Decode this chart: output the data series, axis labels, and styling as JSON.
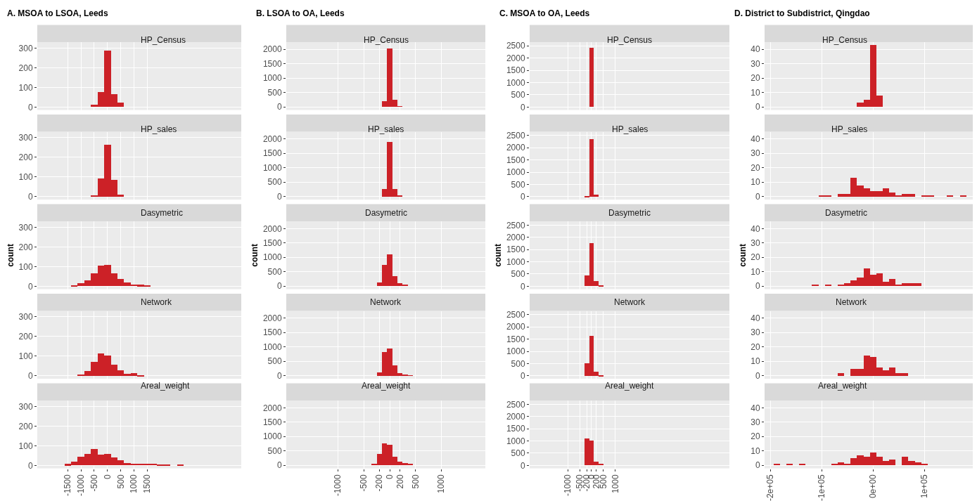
{
  "chart_data": [
    {
      "type": "histogram",
      "title": "A. MSOA to LSOA, Leeds",
      "subtitle": "HP_Census",
      "color": "#cc2127",
      "grid": true,
      "tick_labels": "y",
      "bins": [
        -1625,
        -1375,
        -1125,
        -875,
        -625,
        -375,
        -125,
        125,
        375,
        625,
        875,
        1125,
        1375,
        1625,
        1875,
        2125,
        2375,
        2625,
        2875
      ],
      "xlim": [
        -2650,
        5050
      ],
      "xticks": [
        -1500,
        -1000,
        -500,
        0,
        500,
        1000,
        1500
      ],
      "ylim": [
        -15,
        330
      ],
      "yticks": [
        0,
        100,
        200,
        300
      ],
      "values": [
        0,
        0,
        0,
        0,
        12,
        75,
        288,
        65,
        22,
        0,
        0,
        0,
        0,
        0,
        0,
        0,
        0,
        0
      ]
    },
    {
      "type": "histogram",
      "subtitle": "HP_sales",
      "color": "#cc2127",
      "grid": true,
      "tick_labels": "y",
      "bins": [
        -1625,
        -1375,
        -1125,
        -875,
        -625,
        -375,
        -125,
        125,
        375,
        625,
        875,
        1125,
        1375,
        1625,
        1875,
        2125,
        2375,
        2625,
        2875
      ],
      "xlim": [
        -2650,
        5050
      ],
      "xticks": [
        -1500,
        -1000,
        -500,
        0,
        500,
        1000,
        1500
      ],
      "ylim": [
        -15,
        330
      ],
      "yticks": [
        0,
        100,
        200,
        300
      ],
      "values": [
        0,
        0,
        0,
        0,
        8,
        95,
        265,
        88,
        12,
        0,
        0,
        0,
        0,
        0,
        0,
        0,
        0,
        0
      ]
    },
    {
      "type": "histogram",
      "subtitle": "Dasymetric",
      "ylabel": "count",
      "color": "#cc2127",
      "grid": true,
      "tick_labels": "y",
      "bins": [
        -1625,
        -1375,
        -1125,
        -875,
        -625,
        -375,
        -125,
        125,
        375,
        625,
        875,
        1125,
        1375,
        1625,
        1875,
        2125,
        2375,
        2625,
        2875
      ],
      "xlim": [
        -2650,
        5050
      ],
      "xticks": [
        -1500,
        -1000,
        -500,
        0,
        500,
        1000,
        1500
      ],
      "ylim": [
        -15,
        330
      ],
      "yticks": [
        0,
        100,
        200,
        300
      ],
      "values": [
        0,
        5,
        15,
        28,
        65,
        103,
        110,
        65,
        38,
        20,
        8,
        7,
        4,
        0,
        0,
        0,
        0,
        0
      ]
    },
    {
      "type": "histogram",
      "subtitle": "Network",
      "color": "#cc2127",
      "grid": true,
      "tick_labels": "y",
      "bins": [
        -1625,
        -1375,
        -1125,
        -875,
        -625,
        -375,
        -125,
        125,
        375,
        625,
        875,
        1125,
        1375,
        1625,
        1875,
        2125,
        2375,
        2625,
        2875
      ],
      "xlim": [
        -2650,
        5050
      ],
      "xticks": [
        -1500,
        -1000,
        -500,
        0,
        500,
        1000,
        1500
      ],
      "ylim": [
        -15,
        330
      ],
      "yticks": [
        0,
        100,
        200,
        300
      ],
      "values": [
        0,
        0,
        8,
        25,
        72,
        115,
        105,
        60,
        28,
        12,
        15,
        5,
        0,
        0,
        0,
        0,
        0,
        0
      ]
    },
    {
      "type": "histogram",
      "subtitle": "Areal_weight",
      "color": "#cc2127",
      "grid": true,
      "bins": [
        -1625,
        -1375,
        -1125,
        -875,
        -625,
        -375,
        -125,
        125,
        375,
        625,
        875,
        1125,
        1375,
        1625,
        1875,
        2125,
        2375,
        2625,
        2875
      ],
      "xlim": [
        -2650,
        5050
      ],
      "xticks": [
        -1500,
        -1000,
        -500,
        0,
        500,
        1000,
        1500
      ],
      "ylim": [
        -15,
        330
      ],
      "yticks": [
        0,
        100,
        200,
        300
      ],
      "values": [
        7,
        20,
        43,
        57,
        82,
        55,
        60,
        42,
        25,
        13,
        8,
        8,
        8,
        8,
        5,
        4,
        0,
        6
      ]
    },
    {
      "type": "histogram",
      "title": "B. LSOA to OA, Leeds",
      "subtitle": "HP_Census",
      "color": "#cc2127",
      "grid": true,
      "tick_labels": "y",
      "bins": [
        -350,
        -250,
        -150,
        -50,
        50,
        150,
        250,
        350,
        450
      ],
      "xlim": [
        -2000,
        1850
      ],
      "xticks": [
        -1000,
        -500,
        -200,
        0,
        200,
        500,
        1000
      ],
      "ylim": [
        -110,
        2250
      ],
      "yticks": [
        0,
        500,
        1000,
        1500,
        2000
      ],
      "values": [
        0,
        0,
        200,
        2020,
        250,
        10,
        0,
        0
      ]
    },
    {
      "type": "histogram",
      "subtitle": "HP_sales",
      "color": "#cc2127",
      "grid": true,
      "tick_labels": "y",
      "bins": [
        -350,
        -250,
        -150,
        -50,
        50,
        150,
        250,
        350,
        450
      ],
      "xlim": [
        -2000,
        1850
      ],
      "xticks": [
        -1000,
        -500,
        -200,
        0,
        200,
        500,
        1000
      ],
      "ylim": [
        -110,
        2250
      ],
      "yticks": [
        0,
        500,
        1000,
        1500,
        2000
      ],
      "values": [
        0,
        0,
        270,
        1900,
        270,
        30,
        0,
        0
      ]
    },
    {
      "type": "histogram",
      "subtitle": "Dasymetric",
      "ylabel": "count",
      "color": "#cc2127",
      "grid": true,
      "tick_labels": "y",
      "bins": [
        -350,
        -250,
        -150,
        -50,
        50,
        150,
        250,
        350,
        450
      ],
      "xlim": [
        -2000,
        1850
      ],
      "xticks": [
        -1000,
        -500,
        -200,
        0,
        200,
        500,
        1000
      ],
      "ylim": [
        -110,
        2250
      ],
      "yticks": [
        0,
        500,
        1000,
        1500,
        2000
      ],
      "values": [
        0,
        130,
        730,
        1110,
        340,
        100,
        30,
        0
      ]
    },
    {
      "type": "histogram",
      "subtitle": "Network",
      "color": "#cc2127",
      "grid": true,
      "tick_labels": "y",
      "bins": [
        -350,
        -250,
        -150,
        -50,
        50,
        150,
        250,
        350,
        450
      ],
      "xlim": [
        -2000,
        1850
      ],
      "xticks": [
        -1000,
        -500,
        -200,
        0,
        200,
        500,
        1000
      ],
      "ylim": [
        -110,
        2250
      ],
      "yticks": [
        0,
        500,
        1000,
        1500,
        2000
      ],
      "values": [
        0,
        120,
        820,
        950,
        370,
        90,
        40,
        10
      ]
    },
    {
      "type": "histogram",
      "subtitle": "Areal_weight",
      "color": "#cc2127",
      "grid": true,
      "bins": [
        -350,
        -250,
        -150,
        -50,
        50,
        150,
        250,
        350,
        450
      ],
      "xlim": [
        -2000,
        1850
      ],
      "xticks": [
        -1000,
        -500,
        -200,
        0,
        200,
        500,
        1000
      ],
      "ylim": [
        -110,
        2250
      ],
      "yticks": [
        0,
        500,
        1000,
        1500,
        2000
      ],
      "values": [
        50,
        400,
        750,
        700,
        290,
        130,
        70,
        50
      ]
    },
    {
      "type": "histogram",
      "title": "C. MSOA to OA, Leeds",
      "subtitle": "HP_Census",
      "color": "#cc2127",
      "grid": true,
      "tick_labels": "y",
      "bins": [
        -300,
        -100,
        100,
        300,
        500
      ],
      "xlim": [
        -2600,
        5800
      ],
      "xticks": [
        -1000,
        -500,
        -200,
        0,
        200,
        500,
        1000
      ],
      "ylim": [
        -120,
        2650
      ],
      "yticks": [
        0,
        500,
        1000,
        1500,
        2000,
        2500
      ],
      "values": [
        0,
        2420,
        0,
        0
      ]
    },
    {
      "type": "histogram",
      "subtitle": "HP_sales",
      "color": "#cc2127",
      "grid": true,
      "tick_labels": "y",
      "bins": [
        -300,
        -100,
        100,
        300,
        500
      ],
      "xlim": [
        -2600,
        5800
      ],
      "xticks": [
        -1000,
        -500,
        -200,
        0,
        200,
        500,
        1000
      ],
      "ylim": [
        -120,
        2650
      ],
      "yticks": [
        0,
        500,
        1000,
        1500,
        2000,
        2500
      ],
      "values": [
        30,
        2350,
        100,
        0
      ]
    },
    {
      "type": "histogram",
      "subtitle": "Dasymetric",
      "ylabel": "count",
      "color": "#cc2127",
      "grid": true,
      "tick_labels": "y",
      "bins": [
        -300,
        -100,
        100,
        300,
        500
      ],
      "xlim": [
        -2600,
        5800
      ],
      "xticks": [
        -1000,
        -500,
        -200,
        0,
        200,
        500,
        1000
      ],
      "ylim": [
        -120,
        2650
      ],
      "yticks": [
        0,
        500,
        1000,
        1500,
        2000,
        2500
      ],
      "values": [
        450,
        1750,
        200,
        30
      ]
    },
    {
      "type": "histogram",
      "subtitle": "Network",
      "color": "#cc2127",
      "grid": true,
      "tick_labels": "y",
      "bins": [
        -300,
        -100,
        100,
        300,
        500
      ],
      "xlim": [
        -2600,
        5800
      ],
      "xticks": [
        -1000,
        -500,
        -200,
        0,
        200,
        500,
        1000
      ],
      "ylim": [
        -120,
        2650
      ],
      "yticks": [
        0,
        500,
        1000,
        1500,
        2000,
        2500
      ],
      "values": [
        530,
        1650,
        180,
        40
      ]
    },
    {
      "type": "histogram",
      "subtitle": "Areal_weight",
      "color": "#cc2127",
      "grid": true,
      "bins": [
        -300,
        -100,
        100,
        300,
        500
      ],
      "xlim": [
        -2600,
        5800
      ],
      "xticks": [
        -1000,
        -500,
        -200,
        0,
        200,
        500,
        1000
      ],
      "ylim": [
        -120,
        2650
      ],
      "yticks": [
        0,
        500,
        1000,
        1500,
        2000,
        2500
      ],
      "values": [
        1100,
        1020,
        160,
        70
      ]
    },
    {
      "type": "histogram",
      "title": "D. District to Subdistrict, Qingdao",
      "subtitle": "HP_Census",
      "color": "#cc2127",
      "grid": true,
      "tick_labels": "y",
      "bins": [
        -193750,
        -181250,
        -168750,
        -156250,
        -143750,
        -131250,
        -118750,
        -106250,
        -93750,
        -81250,
        -68750,
        -56250,
        -43750,
        -31250,
        -18750,
        -6250,
        6250,
        18750,
        31250,
        43750,
        56250,
        68750,
        81250,
        93750,
        106250,
        118750,
        131250,
        143750,
        156250,
        168750,
        181250
      ],
      "xlim": [
        -211000,
        194000
      ],
      "xticks": [
        -200000,
        -100000,
        0,
        100000
      ],
      "ylim": [
        -2.2,
        45
      ],
      "yticks": [
        0,
        10,
        20,
        30,
        40
      ],
      "values": [
        0,
        0,
        0,
        0,
        0,
        0,
        0,
        0,
        0,
        0,
        0,
        0,
        0,
        3,
        5,
        43,
        8,
        0,
        0,
        0,
        0,
        0,
        0,
        0,
        0,
        0,
        0,
        0,
        0,
        0
      ]
    },
    {
      "type": "histogram",
      "subtitle": "HP_sales",
      "color": "#cc2127",
      "grid": true,
      "tick_labels": "y",
      "bins": [
        -193750,
        -181250,
        -168750,
        -156250,
        -143750,
        -131250,
        -118750,
        -106250,
        -93750,
        -81250,
        -68750,
        -56250,
        -43750,
        -31250,
        -18750,
        -6250,
        6250,
        18750,
        31250,
        43750,
        56250,
        68750,
        81250,
        93750,
        106250,
        118750,
        131250,
        143750,
        156250,
        168750,
        181250
      ],
      "xlim": [
        -211000,
        194000
      ],
      "xticks": [
        -200000,
        -100000,
        0,
        100000
      ],
      "ylim": [
        -2.2,
        45
      ],
      "yticks": [
        0,
        10,
        20,
        30,
        40
      ],
      "values": [
        0,
        0,
        0,
        0,
        0,
        0,
        0,
        1,
        1,
        0,
        2,
        2,
        13,
        8,
        6,
        4,
        4,
        6,
        3,
        1,
        2,
        2,
        0,
        1,
        1,
        0,
        0,
        1,
        0,
        1
      ]
    },
    {
      "type": "histogram",
      "subtitle": "Dasymetric",
      "ylabel": "count",
      "color": "#cc2127",
      "grid": true,
      "tick_labels": "y",
      "bins": [
        -193750,
        -181250,
        -168750,
        -156250,
        -143750,
        -131250,
        -118750,
        -106250,
        -93750,
        -81250,
        -68750,
        -56250,
        -43750,
        -31250,
        -18750,
        -6250,
        6250,
        18750,
        31250,
        43750,
        56250,
        68750,
        81250,
        93750,
        106250,
        118750,
        131250,
        143750,
        156250,
        168750,
        181250
      ],
      "xlim": [
        -211000,
        194000
      ],
      "xticks": [
        -200000,
        -100000,
        0,
        100000
      ],
      "ylim": [
        -2.2,
        45
      ],
      "yticks": [
        0,
        10,
        20,
        30,
        40
      ],
      "values": [
        0,
        0,
        0,
        0,
        0,
        0,
        1,
        0,
        1,
        0,
        1,
        2,
        4,
        6,
        12,
        8,
        9,
        3,
        5,
        1,
        2,
        2,
        2,
        0,
        0,
        0,
        0,
        0,
        0,
        0
      ]
    },
    {
      "type": "histogram",
      "subtitle": "Network",
      "color": "#cc2127",
      "grid": true,
      "tick_labels": "y",
      "bins": [
        -193750,
        -181250,
        -168750,
        -156250,
        -143750,
        -131250,
        -118750,
        -106250,
        -93750,
        -81250,
        -68750,
        -56250,
        -43750,
        -31250,
        -18750,
        -6250,
        6250,
        18750,
        31250,
        43750,
        56250,
        68750,
        81250,
        93750,
        106250,
        118750,
        131250,
        143750,
        156250,
        168750,
        181250
      ],
      "xlim": [
        -211000,
        194000
      ],
      "xticks": [
        -200000,
        -100000,
        0,
        100000
      ],
      "ylim": [
        -2.2,
        45
      ],
      "yticks": [
        0,
        10,
        20,
        30,
        40
      ],
      "values": [
        0,
        0,
        0,
        0,
        0,
        0,
        0,
        0,
        0,
        0,
        2,
        0,
        5,
        5,
        14,
        13,
        6,
        4,
        6,
        2,
        2,
        0,
        0,
        0,
        0,
        0,
        0,
        0,
        0,
        0
      ]
    },
    {
      "type": "histogram",
      "subtitle": "Areal_weight",
      "color": "#cc2127",
      "grid": true,
      "bins": [
        -193750,
        -181250,
        -168750,
        -156250,
        -143750,
        -131250,
        -118750,
        -106250,
        -93750,
        -81250,
        -68750,
        -56250,
        -43750,
        -31250,
        -18750,
        -6250,
        6250,
        18750,
        31250,
        43750,
        56250,
        68750,
        81250,
        93750,
        106250,
        118750,
        131250,
        143750,
        156250,
        168750,
        181250
      ],
      "xlim": [
        -211000,
        194000
      ],
      "xticks": [
        {
          "value": -200000,
          "label": "-2e+05"
        },
        {
          "value": -100000,
          "label": "-1e+05"
        },
        {
          "value": 0,
          "label": "0e+00"
        },
        {
          "value": 100000,
          "label": "1e+05"
        }
      ],
      "ylim": [
        -2.2,
        45
      ],
      "yticks": [
        0,
        10,
        20,
        30,
        40
      ],
      "values": [
        1,
        0,
        1,
        0,
        1,
        0,
        0,
        0,
        0,
        1,
        2,
        1,
        5,
        7,
        6,
        9,
        6,
        3,
        4,
        0,
        6,
        3,
        2,
        1,
        0,
        0,
        0,
        0,
        0,
        0
      ]
    }
  ]
}
